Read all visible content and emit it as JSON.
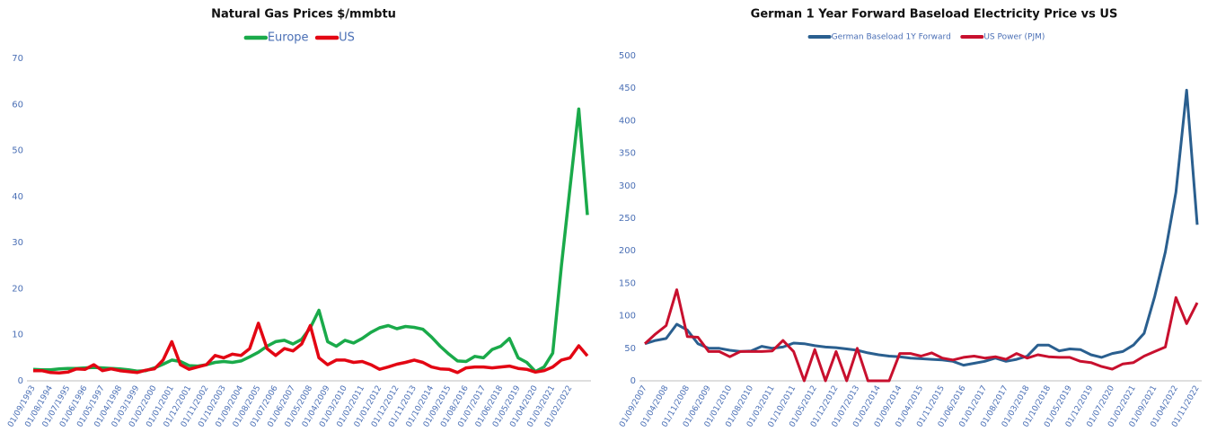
{
  "chart_data": [
    {
      "type": "line",
      "title": "Natural Gas Prices $/mmbtu",
      "categories": [
        "01/09/1993",
        null,
        "01/08/1994",
        null,
        "01/07/1995",
        null,
        "01/06/1996",
        null,
        "01/05/1997",
        null,
        "01/04/1998",
        null,
        "01/03/1999",
        null,
        "01/02/2000",
        null,
        "01/01/2001",
        null,
        "01/12/2001",
        null,
        "01/11/2002",
        null,
        "01/10/2003",
        null,
        "01/09/2004",
        null,
        "01/08/2005",
        null,
        "01/07/2006",
        null,
        "01/06/2007",
        null,
        "01/05/2008",
        null,
        "01/04/2009",
        null,
        "01/03/2010",
        null,
        "01/02/2011",
        null,
        "01/01/2012",
        null,
        "01/12/2012",
        null,
        "01/11/2013",
        null,
        "01/10/2014",
        null,
        "01/09/2015",
        null,
        "01/08/2016",
        null,
        "01/07/2017",
        null,
        "01/06/2018",
        null,
        "01/05/2019",
        null,
        "01/04/2020",
        null,
        "01/03/2021",
        null,
        "01/02/2022",
        null,
        null
      ],
      "series": [
        {
          "name": "Europe",
          "color": "#1aaa4a",
          "values": [
            2.5,
            2.4,
            2.4,
            2.6,
            2.7,
            2.7,
            2.8,
            2.9,
            2.8,
            2.7,
            2.6,
            2.4,
            2.1,
            2.2,
            2.8,
            3.6,
            4.5,
            4.2,
            3.3,
            3.2,
            3.5,
            4.0,
            4.2,
            4.0,
            4.3,
            5.2,
            6.2,
            7.5,
            8.5,
            8.8,
            8.0,
            9.0,
            11.5,
            15.3,
            8.5,
            7.5,
            8.8,
            8.2,
            9.2,
            10.5,
            11.5,
            12.0,
            11.3,
            11.8,
            11.6,
            11.2,
            9.5,
            7.5,
            5.8,
            4.3,
            4.2,
            5.3,
            5.0,
            6.8,
            7.5,
            9.2,
            5.0,
            4.0,
            2.0,
            3.0,
            6.0,
            25.0,
            42.0,
            59.0,
            36.0
          ]
        },
        {
          "name": "US",
          "color": "#e30613",
          "values": [
            2.2,
            2.2,
            1.8,
            1.7,
            1.9,
            2.6,
            2.5,
            3.5,
            2.2,
            2.6,
            2.2,
            2.0,
            1.8,
            2.3,
            2.6,
            4.5,
            8.5,
            3.5,
            2.5,
            3.0,
            3.5,
            5.5,
            5.0,
            5.8,
            5.5,
            7.0,
            12.5,
            7.0,
            5.5,
            7.0,
            6.5,
            8.0,
            12.0,
            5.0,
            3.5,
            4.5,
            4.5,
            4.0,
            4.2,
            3.5,
            2.5,
            3.0,
            3.6,
            4.0,
            4.5,
            4.0,
            3.0,
            2.6,
            2.5,
            1.8,
            2.8,
            3.0,
            3.0,
            2.8,
            3.0,
            3.2,
            2.7,
            2.5,
            1.9,
            2.2,
            3.0,
            4.5,
            5.0,
            7.6,
            5.4
          ]
        }
      ],
      "ylim": [
        0,
        70
      ],
      "yticks": [
        0,
        10,
        20,
        30,
        40,
        50,
        60,
        70
      ]
    },
    {
      "type": "line",
      "title": "German 1 Year Forward Baseload Electricity Price vs US",
      "categories": [
        "01/09/2007",
        null,
        "01/04/2008",
        null,
        "01/11/2008",
        null,
        "01/06/2009",
        null,
        "01/01/2010",
        null,
        "01/08/2010",
        null,
        "01/03/2011",
        null,
        "01/10/2011",
        null,
        "01/05/2012",
        null,
        "01/12/2012",
        null,
        "01/07/2013",
        null,
        "01/02/2014",
        null,
        "01/09/2014",
        null,
        "01/04/2015",
        null,
        "01/11/2015",
        null,
        "01/06/2016",
        null,
        "01/01/2017",
        null,
        "01/08/2017",
        null,
        "01/03/2018",
        null,
        "01/10/2018",
        null,
        "01/05/2019",
        null,
        "01/12/2019",
        null,
        "01/07/2020",
        null,
        "01/02/2021",
        null,
        "01/09/2021",
        null,
        "01/04/2022",
        null,
        "01/11/2022"
      ],
      "series": [
        {
          "name": "German Baseload 1Y Forward",
          "color": "#2a5f8f",
          "values": [
            57,
            62,
            65,
            87,
            78,
            57,
            50,
            50,
            47,
            45,
            46,
            53,
            50,
            52,
            58,
            57,
            54,
            52,
            51,
            49,
            47,
            43,
            40,
            38,
            37,
            35,
            34,
            33,
            32,
            30,
            24,
            27,
            30,
            35,
            30,
            33,
            38,
            55,
            55,
            46,
            49,
            48,
            40,
            36,
            42,
            45,
            55,
            73,
            130,
            198,
            290,
            447,
            240
          ]
        },
        {
          "name": "US Power (PJM)",
          "color": "#c8102e",
          "values": [
            57,
            72,
            85,
            140,
            68,
            67,
            45,
            45,
            37,
            45,
            45,
            45,
            46,
            62,
            45,
            0,
            48,
            0,
            45,
            0,
            50,
            0,
            0,
            0,
            42,
            42,
            38,
            43,
            35,
            32,
            36,
            38,
            35,
            37,
            33,
            42,
            35,
            40,
            37,
            36,
            36,
            30,
            28,
            22,
            18,
            26,
            28,
            38,
            45,
            52,
            128,
            88,
            120
          ]
        }
      ],
      "ylim": [
        0,
        500
      ],
      "yticks": [
        0,
        50,
        100,
        150,
        200,
        250,
        300,
        350,
        400,
        450,
        500
      ]
    }
  ]
}
